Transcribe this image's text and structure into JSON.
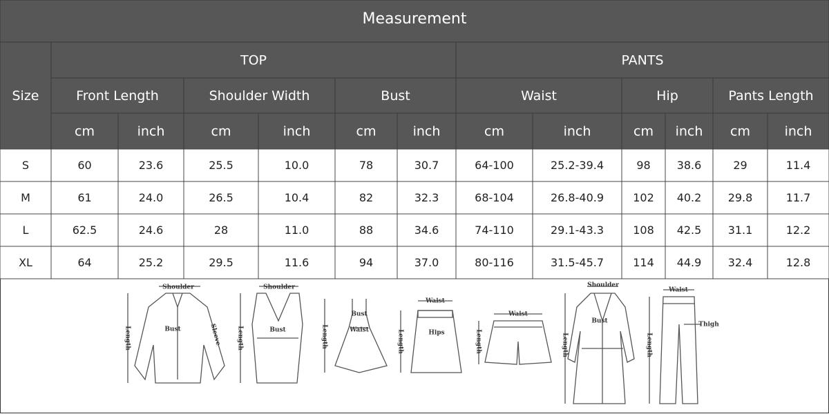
{
  "title": "Measurement",
  "table": {
    "size_header": "Size",
    "groups": [
      {
        "label": "TOP",
        "measures": [
          {
            "label": "Front Length",
            "units": [
              "cm",
              "inch"
            ]
          },
          {
            "label": "Shoulder Width",
            "units": [
              "cm",
              "inch"
            ]
          },
          {
            "label": "Bust",
            "units": [
              "cm",
              "inch"
            ]
          }
        ]
      },
      {
        "label": "PANTS",
        "measures": [
          {
            "label": "Waist",
            "units": [
              "cm",
              "inch"
            ]
          },
          {
            "label": "Hip",
            "units": [
              "cm",
              "inch"
            ]
          },
          {
            "label": "Pants Length",
            "units": [
              "cm",
              "inch"
            ]
          }
        ]
      }
    ],
    "rows": [
      [
        "S",
        "60",
        "23.6",
        "25.5",
        "10.0",
        "78",
        "30.7",
        "64-100",
        "25.2-39.4",
        "98",
        "38.6",
        "29",
        "11.4"
      ],
      [
        "M",
        "61",
        "24.0",
        "26.5",
        "10.4",
        "82",
        "32.3",
        "68-104",
        "26.8-40.9",
        "102",
        "40.2",
        "29.8",
        "11.7"
      ],
      [
        "L",
        "62.5",
        "24.6",
        "28",
        "11.0",
        "88",
        "34.6",
        "74-110",
        "29.1-43.3",
        "108",
        "42.5",
        "31.1",
        "12.2"
      ],
      [
        "XL",
        "64",
        "25.2",
        "29.5",
        "11.6",
        "94",
        "37.0",
        "80-116",
        "31.5-45.7",
        "114",
        "44.9",
        "32.4",
        "12.8"
      ]
    ]
  },
  "illustrations": [
    {
      "labels": [
        "Shoulder",
        "Bust",
        "Sleeve",
        "Length"
      ]
    },
    {
      "labels": [
        "Shoulder",
        "Bust",
        "Length"
      ]
    },
    {
      "labels": [
        "Bust",
        "Waist",
        "Length"
      ]
    },
    {
      "labels": [
        "Waist",
        "Hips",
        "Length"
      ]
    },
    {
      "labels": [
        "Waist",
        "Length"
      ]
    },
    {
      "labels": [
        "Shoulder",
        "Bust",
        "Length"
      ]
    },
    {
      "labels": [
        "Waist",
        "Thigh",
        "Length"
      ]
    }
  ]
}
